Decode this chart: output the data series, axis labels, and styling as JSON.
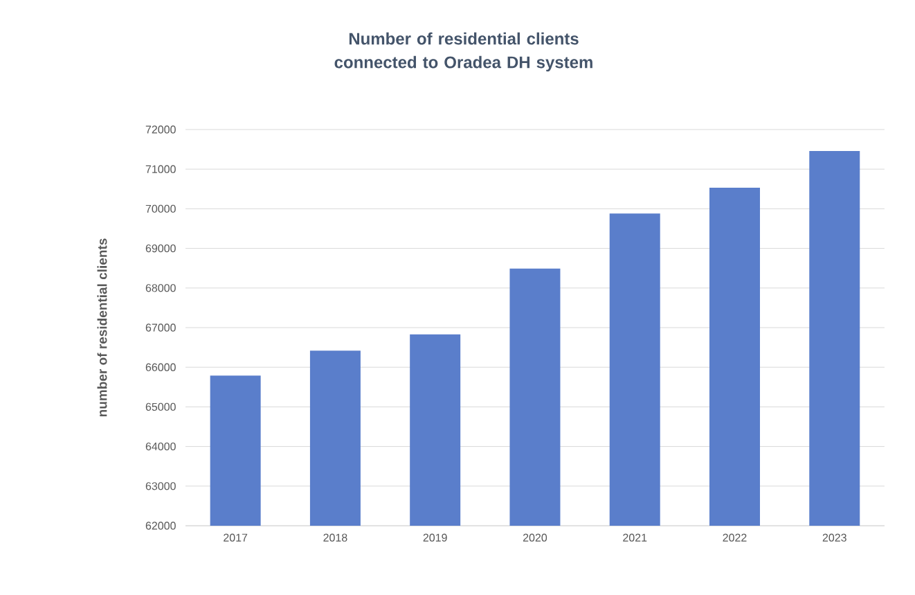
{
  "chart_data": {
    "type": "bar",
    "title": "Number of residential clients connected to Oradea DH system",
    "ylabel": "number of residential clients",
    "categories": [
      "2017",
      "2018",
      "2019",
      "2020",
      "2021",
      "2022",
      "2023"
    ],
    "values": [
      65790,
      66420,
      66830,
      68490,
      69880,
      70530,
      71460
    ],
    "color": "#5a7ecb",
    "ylim": [
      62000,
      72000
    ],
    "yticks": [
      62000,
      63000,
      64000,
      65000,
      66000,
      67000,
      68000,
      69000,
      70000,
      71000,
      72000
    ],
    "grid": "y"
  }
}
